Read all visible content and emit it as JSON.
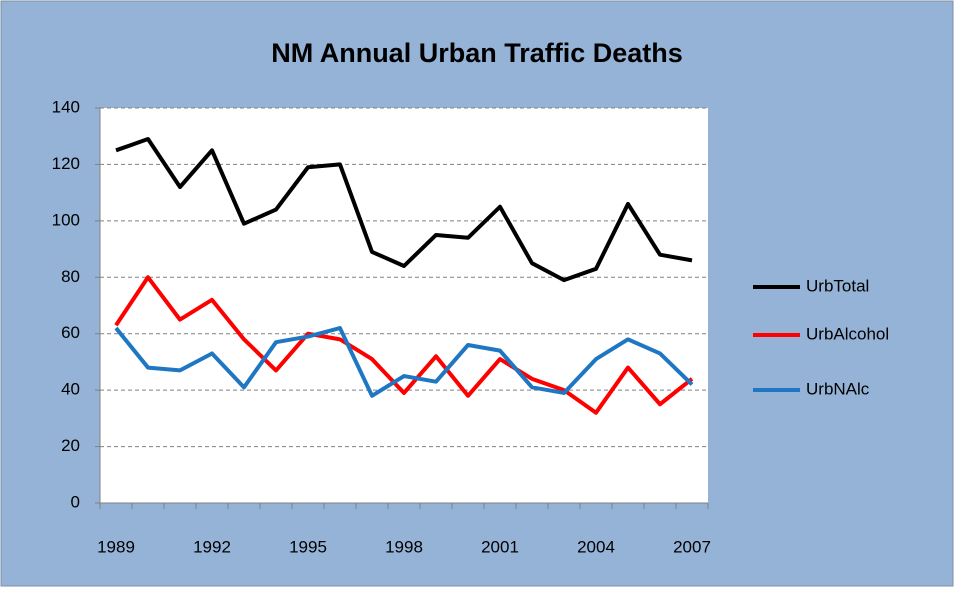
{
  "chart_data": {
    "type": "line",
    "title": "NM Annual Urban Traffic Deaths",
    "categories": [
      "1989",
      null,
      null,
      "1992",
      null,
      null,
      "1995",
      null,
      null,
      "1998",
      null,
      null,
      "2001",
      null,
      null,
      "2004",
      null,
      null,
      "2007"
    ],
    "series": [
      {
        "name": "UrbTotal",
        "color": "#000000",
        "values": [
          125,
          129,
          112,
          125,
          99,
          104,
          119,
          120,
          89,
          84,
          95,
          94,
          105,
          85,
          79,
          83,
          106,
          88,
          86
        ]
      },
      {
        "name": "UrbAlcohol",
        "color": "#ff0000",
        "values": [
          63,
          80,
          65,
          72,
          58,
          47,
          60,
          58,
          51,
          39,
          52,
          38,
          51,
          44,
          40,
          32,
          48,
          35,
          44
        ]
      },
      {
        "name": "UrbNAlc",
        "color": "#1f77c4",
        "values": [
          62,
          48,
          47,
          53,
          41,
          57,
          59,
          62,
          38,
          45,
          43,
          56,
          54,
          41,
          39,
          51,
          58,
          53,
          42
        ]
      }
    ],
    "ylim": [
      0,
      140
    ],
    "yticks": [
      0,
      20,
      40,
      60,
      80,
      100,
      120,
      140
    ],
    "grid": true,
    "legend": "right"
  }
}
